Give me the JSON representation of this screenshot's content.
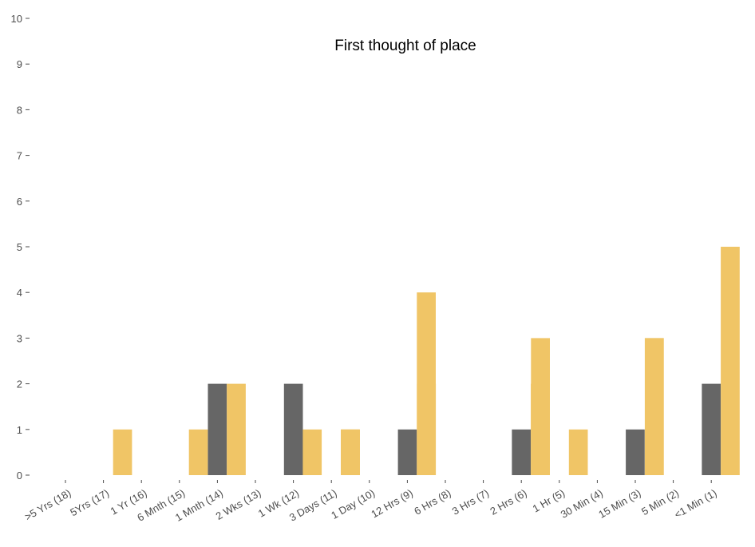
{
  "chart_data": {
    "type": "bar",
    "title": "First thought of place",
    "xlabel": "",
    "ylabel": "",
    "ylim": [
      0,
      10
    ],
    "yticks": [
      0,
      1,
      2,
      3,
      4,
      5,
      6,
      7,
      8,
      9,
      10
    ],
    "grid": false,
    "legend": "none",
    "categories": [
      "&gt;5 Yrs (18)",
      "5Yrs (17)",
      "1 Yr (16)",
      "6 Mnth (15)",
      "1 Mnth (14)",
      "2 Wks (13)",
      "1 Wk (12)",
      "3 Days (11)",
      "1 Day (10)",
      "12 Hrs (9)",
      "6 Hrs (8)",
      "3 Hrs (7)",
      "2 Hrs (6)",
      "1 Hr (5)",
      "30 Min (4)",
      "15 Min (3)",
      "5 Min (2)",
      "&lt;1 Min (1)"
    ],
    "series": [
      {
        "color": "#f0c566",
        "values": [
          0,
          0,
          1,
          0,
          0,
          0,
          0,
          0,
          1,
          0,
          2,
          0,
          0,
          3,
          1,
          0,
          3,
          0
        ]
      },
      {
        "color": "#666666",
        "values": [
          0,
          0,
          0,
          0,
          2,
          0,
          2,
          0,
          0,
          1,
          0,
          0,
          1,
          0,
          0,
          1,
          0,
          2
        ]
      },
      {
        "color": "#f0c566",
        "values": [
          0,
          0,
          0,
          1,
          2,
          0,
          1,
          1,
          0,
          4,
          0,
          0,
          2,
          0,
          0,
          3,
          0,
          5
        ]
      }
    ]
  }
}
